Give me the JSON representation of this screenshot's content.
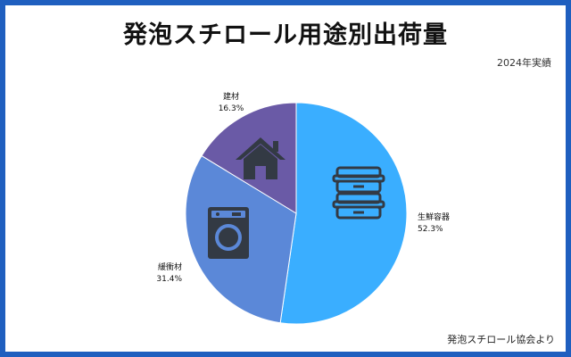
{
  "title": "発泡スチロール用途別出荷量",
  "subtitle": "2024年実績",
  "source": "発泡スチロール協会より",
  "colors": {
    "frame": "#1f5fbf",
    "background": "#ffffff"
  },
  "chart_data": {
    "type": "pie",
    "title": "発泡スチロール用途別出荷量",
    "slices": [
      {
        "label": "生鮮容器",
        "value": 52.3,
        "value_label": "52.3%",
        "color": "#3aaeff",
        "icon": "food-container-icon"
      },
      {
        "label": "緩衝材",
        "value": 31.4,
        "value_label": "31.4%",
        "color": "#5b88d8",
        "icon": "washing-machine-icon"
      },
      {
        "label": "建材",
        "value": 16.3,
        "value_label": "16.3%",
        "color": "#6a5aa6",
        "icon": "house-icon"
      }
    ],
    "start": "12 o'clock",
    "direction": "clockwise"
  }
}
